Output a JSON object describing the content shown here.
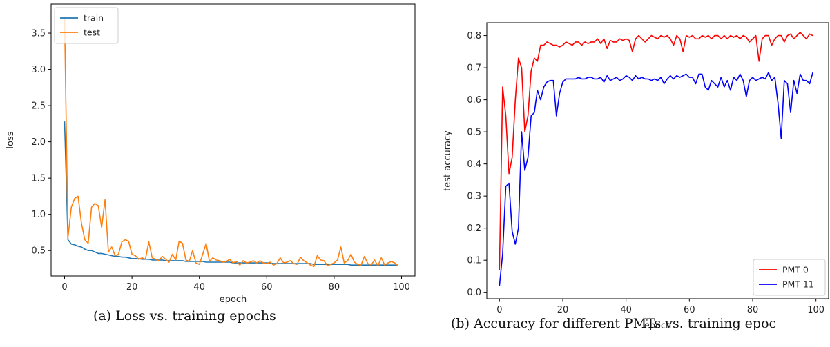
{
  "captions": {
    "a": "(a) Loss vs. training epochs",
    "b": "(b) Accuracy for different PMTs vs. training epoc"
  },
  "chart_data": [
    {
      "type": "line",
      "xlabel": "epoch",
      "ylabel": "loss",
      "xlim": [
        -4,
        104
      ],
      "ylim": [
        0.15,
        3.9
      ],
      "xticks": [
        0,
        20,
        40,
        60,
        80,
        100
      ],
      "yticks": [
        0.5,
        1.0,
        1.5,
        2.0,
        2.5,
        3.0,
        3.5
      ],
      "ytick_format": 1,
      "legend_position": "top-left",
      "grid": false,
      "series": [
        {
          "name": "train",
          "color": "#1f77b4",
          "x": [
            0,
            1,
            2,
            3,
            4,
            5,
            6,
            7,
            8,
            9,
            10,
            11,
            12,
            13,
            14,
            15,
            16,
            17,
            18,
            19,
            20,
            21,
            22,
            23,
            24,
            25,
            26,
            27,
            28,
            29,
            30,
            31,
            32,
            33,
            34,
            35,
            36,
            37,
            38,
            39,
            40,
            41,
            42,
            43,
            44,
            45,
            46,
            47,
            48,
            49,
            50,
            51,
            52,
            53,
            54,
            55,
            56,
            57,
            58,
            59,
            60,
            61,
            62,
            63,
            64,
            65,
            66,
            67,
            68,
            69,
            70,
            71,
            72,
            73,
            74,
            75,
            76,
            77,
            78,
            79,
            80,
            81,
            82,
            83,
            84,
            85,
            86,
            87,
            88,
            89,
            90,
            91,
            92,
            93,
            94,
            95,
            96,
            97,
            98,
            99
          ],
          "values": [
            2.28,
            0.65,
            0.59,
            0.58,
            0.56,
            0.55,
            0.52,
            0.5,
            0.5,
            0.48,
            0.46,
            0.46,
            0.45,
            0.44,
            0.43,
            0.42,
            0.42,
            0.41,
            0.41,
            0.4,
            0.39,
            0.39,
            0.39,
            0.38,
            0.38,
            0.38,
            0.37,
            0.37,
            0.37,
            0.37,
            0.36,
            0.36,
            0.36,
            0.36,
            0.36,
            0.36,
            0.35,
            0.35,
            0.35,
            0.35,
            0.35,
            0.35,
            0.34,
            0.34,
            0.34,
            0.34,
            0.34,
            0.34,
            0.34,
            0.34,
            0.33,
            0.33,
            0.33,
            0.33,
            0.33,
            0.33,
            0.33,
            0.33,
            0.33,
            0.33,
            0.33,
            0.33,
            0.32,
            0.32,
            0.32,
            0.32,
            0.32,
            0.32,
            0.32,
            0.32,
            0.32,
            0.32,
            0.32,
            0.32,
            0.31,
            0.31,
            0.31,
            0.31,
            0.31,
            0.31,
            0.31,
            0.31,
            0.31,
            0.31,
            0.31,
            0.3,
            0.3,
            0.3,
            0.3,
            0.3,
            0.3,
            0.3,
            0.3,
            0.3,
            0.3,
            0.3,
            0.3,
            0.3,
            0.3,
            0.3
          ]
        },
        {
          "name": "test",
          "color": "#ff7f0e",
          "x": [
            0,
            1,
            2,
            3,
            4,
            5,
            6,
            7,
            8,
            9,
            10,
            11,
            12,
            13,
            14,
            15,
            16,
            17,
            18,
            19,
            20,
            21,
            22,
            23,
            24,
            25,
            26,
            27,
            28,
            29,
            30,
            31,
            32,
            33,
            34,
            35,
            36,
            37,
            38,
            39,
            40,
            41,
            42,
            43,
            44,
            45,
            46,
            47,
            48,
            49,
            50,
            51,
            52,
            53,
            54,
            55,
            56,
            57,
            58,
            59,
            60,
            61,
            62,
            63,
            64,
            65,
            66,
            67,
            68,
            69,
            70,
            71,
            72,
            73,
            74,
            75,
            76,
            77,
            78,
            79,
            80,
            81,
            82,
            83,
            84,
            85,
            86,
            87,
            88,
            89,
            90,
            91,
            92,
            93,
            94,
            95,
            96,
            97,
            98,
            99
          ],
          "values": [
            3.72,
            0.68,
            1.1,
            1.22,
            1.25,
            0.88,
            0.65,
            0.6,
            1.1,
            1.15,
            1.12,
            0.82,
            1.2,
            0.48,
            0.55,
            0.43,
            0.45,
            0.62,
            0.65,
            0.63,
            0.45,
            0.43,
            0.38,
            0.4,
            0.38,
            0.62,
            0.4,
            0.38,
            0.36,
            0.42,
            0.38,
            0.34,
            0.45,
            0.37,
            0.63,
            0.6,
            0.37,
            0.35,
            0.5,
            0.33,
            0.31,
            0.45,
            0.6,
            0.35,
            0.4,
            0.37,
            0.36,
            0.34,
            0.35,
            0.38,
            0.33,
            0.35,
            0.3,
            0.36,
            0.33,
            0.34,
            0.36,
            0.33,
            0.36,
            0.33,
            0.32,
            0.34,
            0.3,
            0.32,
            0.4,
            0.33,
            0.34,
            0.36,
            0.32,
            0.31,
            0.41,
            0.36,
            0.33,
            0.3,
            0.28,
            0.43,
            0.37,
            0.36,
            0.29,
            0.31,
            0.33,
            0.37,
            0.55,
            0.33,
            0.36,
            0.45,
            0.34,
            0.31,
            0.3,
            0.42,
            0.32,
            0.3,
            0.37,
            0.29,
            0.4,
            0.3,
            0.33,
            0.35,
            0.33,
            0.29
          ]
        }
      ]
    },
    {
      "type": "line",
      "xlabel": "epoch",
      "ylabel": "test accuracy",
      "xlim": [
        -4,
        104
      ],
      "ylim": [
        -0.02,
        0.84
      ],
      "xticks": [
        0,
        20,
        40,
        60,
        80,
        100
      ],
      "yticks": [
        0.0,
        0.1,
        0.2,
        0.3,
        0.4,
        0.5,
        0.6,
        0.7,
        0.8
      ],
      "ytick_format": 1,
      "legend_position": "bottom-right",
      "grid": false,
      "series": [
        {
          "name": "PMT 0",
          "color": "#ff0000",
          "x": [
            0,
            1,
            2,
            3,
            4,
            5,
            6,
            7,
            8,
            9,
            10,
            11,
            12,
            13,
            14,
            15,
            16,
            17,
            18,
            19,
            20,
            21,
            22,
            23,
            24,
            25,
            26,
            27,
            28,
            29,
            30,
            31,
            32,
            33,
            34,
            35,
            36,
            37,
            38,
            39,
            40,
            41,
            42,
            43,
            44,
            45,
            46,
            47,
            48,
            49,
            50,
            51,
            52,
            53,
            54,
            55,
            56,
            57,
            58,
            59,
            60,
            61,
            62,
            63,
            64,
            65,
            66,
            67,
            68,
            69,
            70,
            71,
            72,
            73,
            74,
            75,
            76,
            77,
            78,
            79,
            80,
            81,
            82,
            83,
            84,
            85,
            86,
            87,
            88,
            89,
            90,
            91,
            92,
            93,
            94,
            95,
            96,
            97,
            98,
            99
          ],
          "values": [
            0.07,
            0.64,
            0.55,
            0.37,
            0.42,
            0.6,
            0.73,
            0.7,
            0.5,
            0.55,
            0.69,
            0.73,
            0.72,
            0.77,
            0.77,
            0.78,
            0.775,
            0.77,
            0.77,
            0.765,
            0.77,
            0.78,
            0.775,
            0.77,
            0.78,
            0.78,
            0.77,
            0.78,
            0.775,
            0.78,
            0.78,
            0.79,
            0.775,
            0.79,
            0.76,
            0.785,
            0.78,
            0.78,
            0.79,
            0.785,
            0.79,
            0.785,
            0.75,
            0.79,
            0.8,
            0.79,
            0.78,
            0.79,
            0.8,
            0.795,
            0.79,
            0.8,
            0.795,
            0.8,
            0.79,
            0.77,
            0.8,
            0.79,
            0.75,
            0.8,
            0.795,
            0.8,
            0.79,
            0.79,
            0.8,
            0.795,
            0.8,
            0.79,
            0.8,
            0.8,
            0.79,
            0.8,
            0.79,
            0.8,
            0.795,
            0.8,
            0.79,
            0.8,
            0.795,
            0.78,
            0.79,
            0.8,
            0.72,
            0.79,
            0.8,
            0.8,
            0.77,
            0.79,
            0.8,
            0.8,
            0.78,
            0.8,
            0.805,
            0.79,
            0.8,
            0.81,
            0.8,
            0.79,
            0.805,
            0.8
          ]
        },
        {
          "name": "PMT 11",
          "color": "#0000ff",
          "x": [
            0,
            1,
            2,
            3,
            4,
            5,
            6,
            7,
            8,
            9,
            10,
            11,
            12,
            13,
            14,
            15,
            16,
            17,
            18,
            19,
            20,
            21,
            22,
            23,
            24,
            25,
            26,
            27,
            28,
            29,
            30,
            31,
            32,
            33,
            34,
            35,
            36,
            37,
            38,
            39,
            40,
            41,
            42,
            43,
            44,
            45,
            46,
            47,
            48,
            49,
            50,
            51,
            52,
            53,
            54,
            55,
            56,
            57,
            58,
            59,
            60,
            61,
            62,
            63,
            64,
            65,
            66,
            67,
            68,
            69,
            70,
            71,
            72,
            73,
            74,
            75,
            76,
            77,
            78,
            79,
            80,
            81,
            82,
            83,
            84,
            85,
            86,
            87,
            88,
            89,
            90,
            91,
            92,
            93,
            94,
            95,
            96,
            97,
            98,
            99
          ],
          "values": [
            0.02,
            0.12,
            0.33,
            0.34,
            0.19,
            0.15,
            0.2,
            0.5,
            0.38,
            0.42,
            0.55,
            0.56,
            0.63,
            0.6,
            0.64,
            0.655,
            0.66,
            0.66,
            0.55,
            0.62,
            0.655,
            0.665,
            0.665,
            0.665,
            0.665,
            0.67,
            0.665,
            0.665,
            0.67,
            0.67,
            0.665,
            0.665,
            0.67,
            0.655,
            0.675,
            0.66,
            0.665,
            0.67,
            0.66,
            0.665,
            0.675,
            0.67,
            0.66,
            0.675,
            0.665,
            0.67,
            0.665,
            0.665,
            0.66,
            0.665,
            0.66,
            0.67,
            0.65,
            0.665,
            0.675,
            0.665,
            0.675,
            0.67,
            0.675,
            0.68,
            0.67,
            0.67,
            0.65,
            0.68,
            0.68,
            0.64,
            0.63,
            0.66,
            0.65,
            0.64,
            0.67,
            0.64,
            0.66,
            0.63,
            0.67,
            0.66,
            0.68,
            0.66,
            0.61,
            0.66,
            0.67,
            0.66,
            0.665,
            0.67,
            0.665,
            0.685,
            0.66,
            0.67,
            0.59,
            0.48,
            0.66,
            0.65,
            0.56,
            0.66,
            0.62,
            0.68,
            0.66,
            0.66,
            0.65,
            0.685
          ]
        }
      ]
    }
  ]
}
